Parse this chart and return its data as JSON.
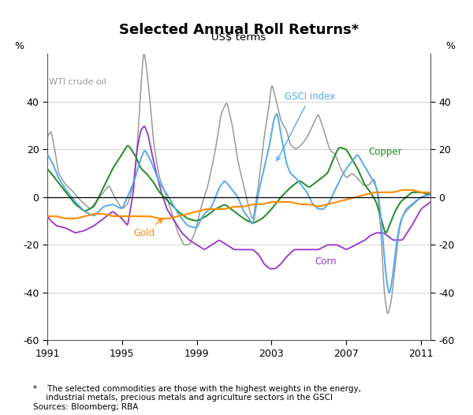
{
  "title": "Selected Annual Roll Returns*",
  "subtitle": "US$ terms",
  "ylabel_left": "%",
  "ylabel_right": "%",
  "xlim": [
    1991.0,
    2011.5
  ],
  "ylim": [
    -60,
    60
  ],
  "yticks": [
    -60,
    -40,
    -20,
    0,
    20,
    40
  ],
  "xticks": [
    1991,
    1995,
    1999,
    2003,
    2007,
    2011
  ],
  "footnote": "*    The selected commodities are those with the highest weights in the energy,\n     industrial metals, precious metals and agriculture sectors in the GSCI\nSources: Bloomberg; RBA",
  "series_colors": {
    "wti": "#999999",
    "gsci": "#55aaee",
    "copper": "#228B22",
    "gold": "#ff8c00",
    "corn": "#9933cc"
  },
  "line_width": 1.1,
  "wti_knots": [
    [
      1991.0,
      25
    ],
    [
      1991.2,
      28
    ],
    [
      1991.4,
      20
    ],
    [
      1991.6,
      10
    ],
    [
      1992.0,
      5
    ],
    [
      1992.3,
      3
    ],
    [
      1992.6,
      0
    ],
    [
      1993.0,
      -3
    ],
    [
      1993.3,
      -5
    ],
    [
      1993.6,
      -2
    ],
    [
      1994.0,
      2
    ],
    [
      1994.3,
      5
    ],
    [
      1994.6,
      0
    ],
    [
      1995.0,
      -5
    ],
    [
      1995.3,
      -3
    ],
    [
      1995.6,
      5
    ],
    [
      1995.8,
      20
    ],
    [
      1996.0,
      45
    ],
    [
      1996.15,
      62
    ],
    [
      1996.3,
      55
    ],
    [
      1996.5,
      40
    ],
    [
      1996.7,
      22
    ],
    [
      1997.0,
      8
    ],
    [
      1997.3,
      2
    ],
    [
      1997.6,
      -5
    ],
    [
      1998.0,
      -15
    ],
    [
      1998.3,
      -20
    ],
    [
      1998.6,
      -20
    ],
    [
      1998.9,
      -15
    ],
    [
      1999.2,
      -5
    ],
    [
      1999.6,
      5
    ],
    [
      2000.0,
      20
    ],
    [
      2000.3,
      35
    ],
    [
      2000.6,
      40
    ],
    [
      2000.9,
      30
    ],
    [
      2001.2,
      15
    ],
    [
      2001.5,
      5
    ],
    [
      2001.8,
      -5
    ],
    [
      2002.0,
      -10
    ],
    [
      2002.3,
      5
    ],
    [
      2002.6,
      25
    ],
    [
      2002.9,
      40
    ],
    [
      2003.0,
      48
    ],
    [
      2003.2,
      42
    ],
    [
      2003.5,
      32
    ],
    [
      2003.8,
      28
    ],
    [
      2004.0,
      22
    ],
    [
      2004.3,
      20
    ],
    [
      2004.6,
      22
    ],
    [
      2004.9,
      25
    ],
    [
      2005.2,
      30
    ],
    [
      2005.5,
      35
    ],
    [
      2005.8,
      28
    ],
    [
      2006.1,
      20
    ],
    [
      2006.4,
      18
    ],
    [
      2006.7,
      12
    ],
    [
      2007.0,
      8
    ],
    [
      2007.3,
      10
    ],
    [
      2007.6,
      8
    ],
    [
      2007.9,
      5
    ],
    [
      2008.2,
      5
    ],
    [
      2008.5,
      8
    ],
    [
      2008.7,
      0
    ],
    [
      2008.9,
      -20
    ],
    [
      2009.0,
      -38
    ],
    [
      2009.2,
      -50
    ],
    [
      2009.4,
      -44
    ],
    [
      2009.6,
      -30
    ],
    [
      2009.8,
      -15
    ],
    [
      2010.0,
      -8
    ],
    [
      2010.3,
      -5
    ],
    [
      2010.6,
      -3
    ],
    [
      2011.0,
      0
    ],
    [
      2011.5,
      2
    ]
  ],
  "gsci_knots": [
    [
      1991.0,
      18
    ],
    [
      1991.3,
      14
    ],
    [
      1991.6,
      8
    ],
    [
      1992.0,
      3
    ],
    [
      1992.5,
      -2
    ],
    [
      1993.0,
      -6
    ],
    [
      1993.5,
      -8
    ],
    [
      1994.0,
      -4
    ],
    [
      1994.5,
      -3
    ],
    [
      1995.0,
      -5
    ],
    [
      1995.4,
      2
    ],
    [
      1995.7,
      8
    ],
    [
      1996.0,
      16
    ],
    [
      1996.2,
      20
    ],
    [
      1996.5,
      16
    ],
    [
      1996.8,
      10
    ],
    [
      1997.0,
      6
    ],
    [
      1997.5,
      0
    ],
    [
      1998.0,
      -7
    ],
    [
      1998.5,
      -12
    ],
    [
      1999.0,
      -13
    ],
    [
      1999.3,
      -8
    ],
    [
      1999.8,
      -4
    ],
    [
      2000.2,
      4
    ],
    [
      2000.5,
      7
    ],
    [
      2000.8,
      4
    ],
    [
      2001.2,
      0
    ],
    [
      2001.5,
      -6
    ],
    [
      2001.8,
      -9
    ],
    [
      2002.0,
      -12
    ],
    [
      2002.3,
      2
    ],
    [
      2002.6,
      12
    ],
    [
      2002.9,
      22
    ],
    [
      2003.1,
      32
    ],
    [
      2003.3,
      36
    ],
    [
      2003.5,
      26
    ],
    [
      2003.8,
      14
    ],
    [
      2004.0,
      10
    ],
    [
      2004.3,
      8
    ],
    [
      2004.6,
      5
    ],
    [
      2004.9,
      2
    ],
    [
      2005.2,
      -3
    ],
    [
      2005.5,
      -5
    ],
    [
      2005.8,
      -5
    ],
    [
      2006.1,
      -2
    ],
    [
      2006.4,
      3
    ],
    [
      2006.7,
      8
    ],
    [
      2007.0,
      12
    ],
    [
      2007.3,
      15
    ],
    [
      2007.6,
      18
    ],
    [
      2007.9,
      14
    ],
    [
      2008.2,
      10
    ],
    [
      2008.5,
      6
    ],
    [
      2008.7,
      2
    ],
    [
      2008.9,
      -12
    ],
    [
      2009.1,
      -32
    ],
    [
      2009.3,
      -42
    ],
    [
      2009.5,
      -32
    ],
    [
      2009.7,
      -18
    ],
    [
      2009.9,
      -10
    ],
    [
      2010.2,
      -5
    ],
    [
      2010.5,
      -3
    ],
    [
      2011.0,
      0
    ],
    [
      2011.5,
      1
    ]
  ],
  "copper_knots": [
    [
      1991.0,
      12
    ],
    [
      1991.5,
      7
    ],
    [
      1992.0,
      2
    ],
    [
      1992.5,
      -3
    ],
    [
      1993.0,
      -6
    ],
    [
      1993.5,
      -4
    ],
    [
      1994.0,
      4
    ],
    [
      1994.5,
      12
    ],
    [
      1995.0,
      18
    ],
    [
      1995.3,
      22
    ],
    [
      1995.5,
      20
    ],
    [
      1995.8,
      16
    ],
    [
      1996.0,
      12
    ],
    [
      1996.3,
      10
    ],
    [
      1996.7,
      6
    ],
    [
      1997.0,
      2
    ],
    [
      1997.5,
      -2
    ],
    [
      1998.0,
      -6
    ],
    [
      1998.5,
      -9
    ],
    [
      1999.0,
      -10
    ],
    [
      1999.5,
      -8
    ],
    [
      2000.0,
      -5
    ],
    [
      2000.5,
      -3
    ],
    [
      2001.0,
      -6
    ],
    [
      2001.5,
      -9
    ],
    [
      2002.0,
      -11
    ],
    [
      2002.5,
      -9
    ],
    [
      2003.0,
      -5
    ],
    [
      2003.5,
      0
    ],
    [
      2004.0,
      4
    ],
    [
      2004.5,
      7
    ],
    [
      2005.0,
      4
    ],
    [
      2005.5,
      7
    ],
    [
      2006.0,
      10
    ],
    [
      2006.3,
      16
    ],
    [
      2006.6,
      21
    ],
    [
      2007.0,
      20
    ],
    [
      2007.3,
      16
    ],
    [
      2007.6,
      12
    ],
    [
      2008.0,
      5
    ],
    [
      2008.3,
      2
    ],
    [
      2008.6,
      -2
    ],
    [
      2008.9,
      -10
    ],
    [
      2009.1,
      -16
    ],
    [
      2009.3,
      -12
    ],
    [
      2009.6,
      -6
    ],
    [
      2009.9,
      -2
    ],
    [
      2010.2,
      0
    ],
    [
      2010.5,
      2
    ],
    [
      2011.0,
      2
    ],
    [
      2011.5,
      1
    ]
  ],
  "gold_knots": [
    [
      1991.0,
      -8
    ],
    [
      1991.5,
      -8
    ],
    [
      1992.0,
      -9
    ],
    [
      1992.5,
      -9
    ],
    [
      1993.0,
      -8
    ],
    [
      1993.5,
      -7
    ],
    [
      1994.0,
      -7
    ],
    [
      1994.5,
      -8
    ],
    [
      1995.0,
      -8
    ],
    [
      1995.5,
      -8
    ],
    [
      1996.0,
      -8
    ],
    [
      1996.5,
      -8
    ],
    [
      1997.0,
      -9
    ],
    [
      1997.5,
      -9
    ],
    [
      1998.0,
      -8
    ],
    [
      1998.5,
      -7
    ],
    [
      1999.0,
      -6
    ],
    [
      1999.5,
      -5
    ],
    [
      2000.0,
      -5
    ],
    [
      2000.5,
      -5
    ],
    [
      2001.0,
      -4
    ],
    [
      2001.5,
      -4
    ],
    [
      2002.0,
      -3
    ],
    [
      2002.5,
      -3
    ],
    [
      2003.0,
      -2
    ],
    [
      2003.5,
      -2
    ],
    [
      2004.0,
      -2
    ],
    [
      2004.5,
      -3
    ],
    [
      2005.0,
      -3
    ],
    [
      2005.5,
      -4
    ],
    [
      2006.0,
      -3
    ],
    [
      2006.5,
      -2
    ],
    [
      2007.0,
      -1
    ],
    [
      2007.5,
      0
    ],
    [
      2008.0,
      1
    ],
    [
      2008.5,
      2
    ],
    [
      2009.0,
      2
    ],
    [
      2009.5,
      2
    ],
    [
      2010.0,
      3
    ],
    [
      2010.5,
      3
    ],
    [
      2011.0,
      2
    ],
    [
      2011.5,
      2
    ]
  ],
  "corn_knots": [
    [
      1991.0,
      -8
    ],
    [
      1991.2,
      -10
    ],
    [
      1991.5,
      -12
    ],
    [
      1992.0,
      -13
    ],
    [
      1992.5,
      -15
    ],
    [
      1993.0,
      -14
    ],
    [
      1993.5,
      -12
    ],
    [
      1994.0,
      -9
    ],
    [
      1994.5,
      -6
    ],
    [
      1995.0,
      -9
    ],
    [
      1995.3,
      -12
    ],
    [
      1995.6,
      2
    ],
    [
      1995.8,
      20
    ],
    [
      1996.0,
      28
    ],
    [
      1996.2,
      30
    ],
    [
      1996.4,
      26
    ],
    [
      1996.6,
      18
    ],
    [
      1996.9,
      8
    ],
    [
      1997.1,
      2
    ],
    [
      1997.4,
      -5
    ],
    [
      1997.8,
      -10
    ],
    [
      1998.2,
      -15
    ],
    [
      1998.6,
      -18
    ],
    [
      1999.0,
      -20
    ],
    [
      1999.4,
      -22
    ],
    [
      1999.8,
      -20
    ],
    [
      2000.2,
      -18
    ],
    [
      2000.6,
      -20
    ],
    [
      2001.0,
      -22
    ],
    [
      2001.5,
      -22
    ],
    [
      2002.0,
      -22
    ],
    [
      2002.3,
      -24
    ],
    [
      2002.6,
      -28
    ],
    [
      2002.9,
      -30
    ],
    [
      2003.2,
      -30
    ],
    [
      2003.5,
      -28
    ],
    [
      2003.8,
      -25
    ],
    [
      2004.2,
      -22
    ],
    [
      2004.6,
      -22
    ],
    [
      2005.0,
      -22
    ],
    [
      2005.5,
      -22
    ],
    [
      2006.0,
      -20
    ],
    [
      2006.5,
      -20
    ],
    [
      2007.0,
      -22
    ],
    [
      2007.5,
      -20
    ],
    [
      2008.0,
      -18
    ],
    [
      2008.3,
      -16
    ],
    [
      2008.6,
      -15
    ],
    [
      2009.0,
      -15
    ],
    [
      2009.5,
      -18
    ],
    [
      2010.0,
      -18
    ],
    [
      2010.5,
      -12
    ],
    [
      2011.0,
      -5
    ],
    [
      2011.5,
      -2
    ]
  ]
}
